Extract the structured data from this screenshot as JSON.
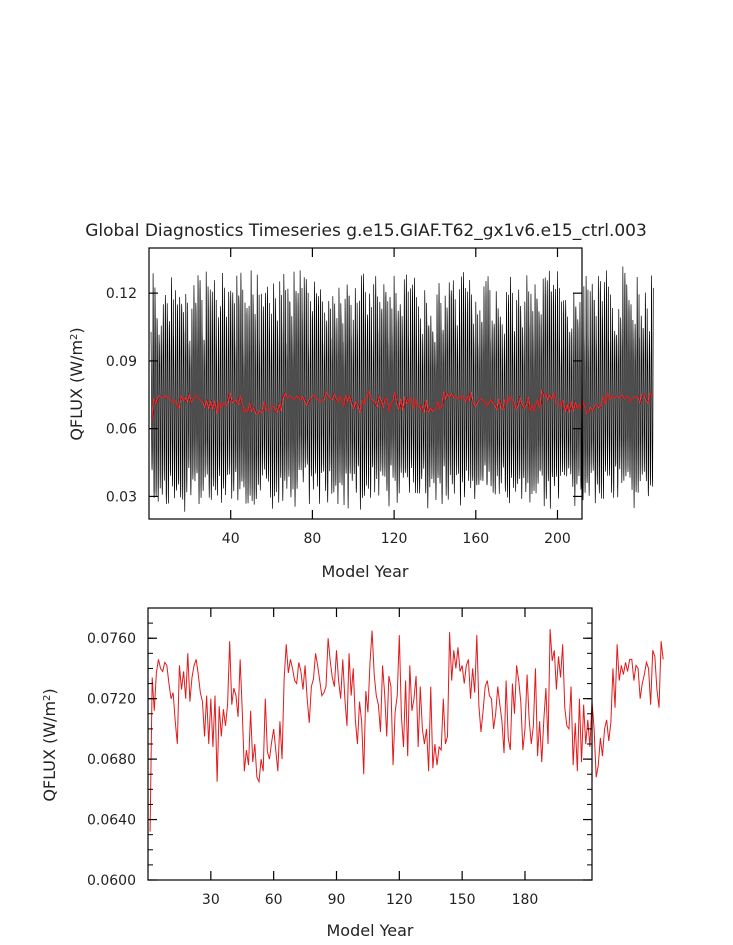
{
  "figure": {
    "title": "Global Diagnostics Timeseries g.e15.GIAF.T62_gx1v6.e15_ctrl.003"
  },
  "chart_data": [
    {
      "type": "line",
      "panel": "top",
      "xlabel": "Model Year",
      "ylabel": "QFLUX (W/m²)",
      "ylabel_main": "QFLUX (W/m",
      "ylabel_sup": "2",
      "ylabel_end": ")",
      "xlim": [
        0,
        212
      ],
      "ylim": [
        0.02,
        0.14
      ],
      "xticks": [
        40,
        80,
        120,
        160,
        200
      ],
      "yticks": [
        0.03,
        0.06,
        0.09,
        0.12
      ],
      "ytick_labels": [
        "0.03",
        "0.06",
        "0.09",
        "0.12"
      ],
      "series": [
        {
          "color": "#000000",
          "description_of_values": "monthly values, seasonal cycle between about 0.025 and 0.12",
          "monthly_low": [
            0.025,
            0.035
          ],
          "monthly_high": [
            0.1,
            0.13
          ]
        },
        {
          "color": "#e31a1c",
          "annual_mean_values": "same as bottom panel annual means"
        }
      ]
    },
    {
      "type": "line",
      "panel": "bottom",
      "xlabel": "Model Year",
      "ylabel": "QFLUX (W/m²)",
      "ylabel_main": "QFLUX (W/m",
      "ylabel_sup": "2",
      "ylabel_end": ")",
      "xlim": [
        0,
        212
      ],
      "ylim": [
        0.06,
        0.078
      ],
      "xticks": [
        30,
        60,
        90,
        120,
        150,
        180
      ],
      "yticks": [
        0.06,
        0.064,
        0.068,
        0.072,
        0.076
      ],
      "ytick_labels": [
        "0.0600",
        "0.0640",
        "0.0680",
        "0.0720",
        "0.0760"
      ],
      "series": [
        {
          "color": "#e31a1c",
          "x_start": 1,
          "values": [
            0.0632,
            0.0734,
            0.0712,
            0.0737,
            0.0746,
            0.074,
            0.0738,
            0.0744,
            0.0742,
            0.073,
            0.072,
            0.0724,
            0.0705,
            0.069,
            0.0742,
            0.0726,
            0.0738,
            0.072,
            0.075,
            0.0718,
            0.0734,
            0.0742,
            0.0746,
            0.0736,
            0.0724,
            0.0718,
            0.0695,
            0.0722,
            0.069,
            0.072,
            0.0688,
            0.0722,
            0.0665,
            0.0715,
            0.0695,
            0.0713,
            0.0702,
            0.0716,
            0.0758,
            0.0716,
            0.0727,
            0.0722,
            0.0708,
            0.0746,
            0.0712,
            0.0672,
            0.0686,
            0.0676,
            0.0712,
            0.0678,
            0.069,
            0.0668,
            0.0665,
            0.068,
            0.0672,
            0.072,
            0.0685,
            0.068,
            0.0691,
            0.07,
            0.0686,
            0.0672,
            0.0705,
            0.068,
            0.0733,
            0.0756,
            0.0737,
            0.0746,
            0.074,
            0.0732,
            0.073,
            0.0744,
            0.0738,
            0.0726,
            0.0742,
            0.072,
            0.0704,
            0.0728,
            0.0733,
            0.075,
            0.0742,
            0.0732,
            0.0722,
            0.0724,
            0.0728,
            0.076,
            0.0745,
            0.0734,
            0.0728,
            0.0752,
            0.0732,
            0.072,
            0.0746,
            0.072,
            0.0702,
            0.075,
            0.0722,
            0.074,
            0.0706,
            0.069,
            0.0718,
            0.0705,
            0.067,
            0.0725,
            0.0711,
            0.0744,
            0.0765,
            0.0736,
            0.0722,
            0.0716,
            0.0698,
            0.0742,
            0.0723,
            0.0695,
            0.0735,
            0.0728,
            0.0676,
            0.0711,
            0.0722,
            0.0762,
            0.0708,
            0.0688,
            0.0732,
            0.0682,
            0.0742,
            0.0712,
            0.072,
            0.0735,
            0.0688,
            0.0728,
            0.07,
            0.069,
            0.07,
            0.0672,
            0.0728,
            0.0674,
            0.069,
            0.0676,
            0.0688,
            0.0686,
            0.072,
            0.069,
            0.0695,
            0.0764,
            0.0732,
            0.0752,
            0.074,
            0.0754,
            0.0738,
            0.0742,
            0.073,
            0.0742,
            0.0746,
            0.072,
            0.074,
            0.0724,
            0.0762,
            0.0715,
            0.0698,
            0.0712,
            0.0728,
            0.0732,
            0.0722,
            0.072,
            0.07,
            0.071,
            0.0728,
            0.0716,
            0.0705,
            0.0684,
            0.0732,
            0.0694,
            0.0686,
            0.073,
            0.071,
            0.0742,
            0.0732,
            0.0718,
            0.0686,
            0.07,
            0.0736,
            0.0706,
            0.069,
            0.0702,
            0.074,
            0.0682,
            0.0705,
            0.0678,
            0.0706,
            0.0727,
            0.069,
            0.0766,
            0.0745,
            0.0752,
            0.0726,
            0.0748,
            0.0734,
            0.0756,
            0.0714,
            0.0702,
            0.07,
            0.0728,
            0.0676,
            0.0704,
            0.0672,
            0.072,
            0.0678,
            0.0716,
            0.069,
            0.0706,
            0.0688,
            0.0718,
            0.07,
            0.0668,
            0.0676,
            0.0694,
            0.0682,
            0.07,
            0.0706,
            0.0692,
            0.0704,
            0.074,
            0.0714,
            0.0756,
            0.0732,
            0.0742,
            0.0736,
            0.0744,
            0.0738,
            0.0746,
            0.0746,
            0.0732,
            0.0742,
            0.074,
            0.072,
            0.073,
            0.0736,
            0.0744,
            0.074,
            0.0716,
            0.0752,
            0.0748,
            0.0726,
            0.0714,
            0.0758,
            0.0746
          ]
        }
      ]
    }
  ]
}
